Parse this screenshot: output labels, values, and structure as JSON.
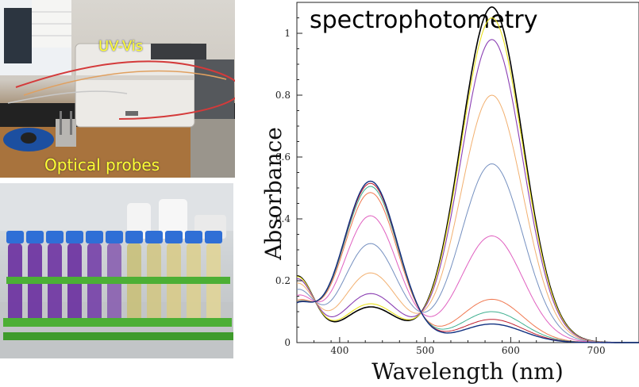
{
  "photos": {
    "lab": {
      "label": "UV-Vis",
      "probes_label": "Optical probes"
    },
    "tubes": {}
  },
  "chart_data": {
    "type": "line",
    "title": "spectrophotometry",
    "xlabel": "Wavelength (nm)",
    "ylabel": "Absorbance",
    "xlim": [
      350,
      750
    ],
    "ylim": [
      0,
      1.1
    ],
    "xticks": [
      400,
      500,
      600,
      700
    ],
    "yticks": [
      0,
      0.2,
      0.4,
      0.6,
      0.8,
      1
    ],
    "ytick_labels": [
      "0",
      "0.2",
      "0.4",
      "0.6",
      "0.8",
      "1"
    ],
    "grid": false,
    "series": [
      {
        "color": "#000000",
        "width": 1.6,
        "a435": 0.115,
        "a578": 1.085
      },
      {
        "color": "#e8e020",
        "width": 1.1,
        "a435": 0.125,
        "a578": 1.05
      },
      {
        "color": "#8b3fb3",
        "width": 1.1,
        "a435": 0.158,
        "a578": 0.98
      },
      {
        "color": "#f2b070",
        "width": 1.0,
        "a435": 0.225,
        "a578": 0.8
      },
      {
        "color": "#7590c0",
        "width": 1.0,
        "a435": 0.32,
        "a578": 0.578
      },
      {
        "color": "#e060c0",
        "width": 1.0,
        "a435": 0.41,
        "a578": 0.345
      },
      {
        "color": "#f07850",
        "width": 1.0,
        "a435": 0.485,
        "a578": 0.14
      },
      {
        "color": "#40b090",
        "width": 1.0,
        "a435": 0.505,
        "a578": 0.1
      },
      {
        "color": "#c02030",
        "width": 1.0,
        "a435": 0.515,
        "a578": 0.075
      },
      {
        "color": "#103080",
        "width": 1.4,
        "a435": 0.522,
        "a578": 0.06
      }
    ]
  }
}
